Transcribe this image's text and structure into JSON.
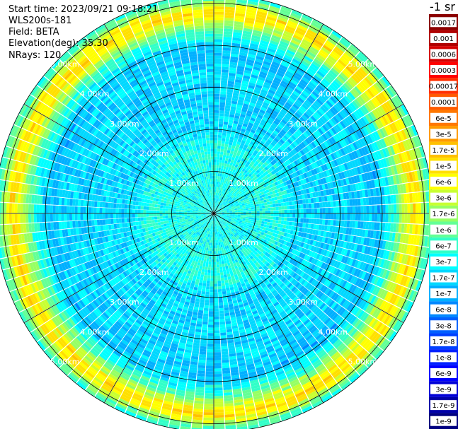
{
  "info": {
    "start_time": "Start time: 2023/09/21 09:18:21",
    "device": "WLS200s-181",
    "field": "Field: BETA",
    "elevation": "Elevation(deg): 35.30",
    "nrays": "NRays: 120"
  },
  "chart_data": {
    "type": "heatmap",
    "projection": "polar-ppi",
    "nrays": 120,
    "ring_labels": [
      "1.00km",
      "2.00km",
      "3.00km",
      "4.00km",
      "5.00km"
    ],
    "ring_values_km": [
      1,
      2,
      3,
      4,
      5
    ],
    "max_range_km": 5.2,
    "colorbar": {
      "title": "-1 sr",
      "labels": [
        "0.0017",
        "0.001",
        "0.0006",
        "0.0003",
        "0.00017",
        "0.0001",
        "6e-5",
        "3e-5",
        "1.7e-5",
        "1e-5",
        "6e-6",
        "3e-6",
        "1.7e-6",
        "1e-6",
        "6e-7",
        "3e-7",
        "1.7e-7",
        "1e-7",
        "6e-8",
        "3e-8",
        "1.7e-8",
        "1e-8",
        "6e-9",
        "3e-9",
        "1.7e-9",
        "1e-9"
      ],
      "colors": [
        "#8b0000",
        "#b00000",
        "#d40000",
        "#ff0000",
        "#ff3000",
        "#ff5a00",
        "#ff7800",
        "#ff9a00",
        "#ffc000",
        "#ffe000",
        "#ffff00",
        "#c8ff32",
        "#96ff64",
        "#64ff96",
        "#32ffc8",
        "#00ffff",
        "#00d8ff",
        "#00b0ff",
        "#0088ff",
        "#0060ff",
        "#0040ff",
        "#0020ff",
        "#0000ff",
        "#0000d8",
        "#0000a8",
        "#000080"
      ]
    },
    "range_profile": [
      {
        "km": 0.0,
        "level": 14.8
      },
      {
        "km": 0.8,
        "level": 14.8
      },
      {
        "km": 1.6,
        "level": 14.6
      },
      {
        "km": 2.0,
        "level": 16.0
      },
      {
        "km": 2.6,
        "level": 16.0
      },
      {
        "km": 3.0,
        "level": 16.0
      },
      {
        "km": 3.5,
        "level": 16.0
      },
      {
        "km": 3.95,
        "level": 16.6
      },
      {
        "km": 4.3,
        "level": 14.0
      },
      {
        "km": 4.55,
        "level": 11.0
      },
      {
        "km": 4.75,
        "level": 9.0
      },
      {
        "km": 4.9,
        "level": 10.0
      },
      {
        "km": 5.05,
        "level": 13.0
      },
      {
        "km": 5.2,
        "level": 14.5
      }
    ]
  }
}
